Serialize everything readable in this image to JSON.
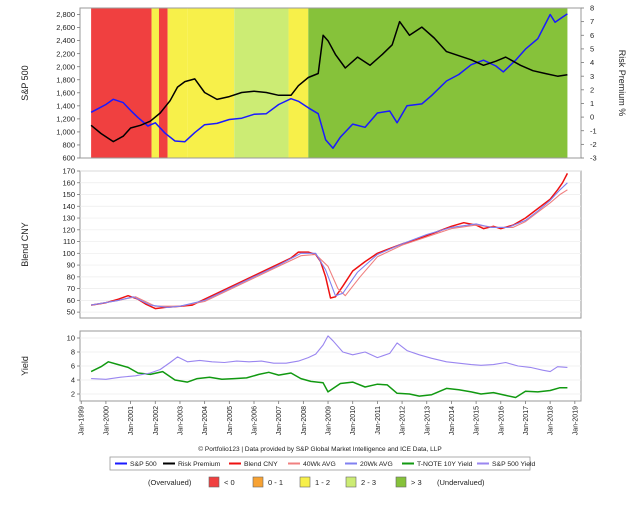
{
  "footer": {
    "credit": "© Portfolio123 | Data provided by S&P Global Market Intelligence and ICE Data, LLP"
  },
  "legend": [
    {
      "label": "S&P 500",
      "color": "#1a1aff"
    },
    {
      "label": "Risk Premium",
      "color": "#000000"
    },
    {
      "label": "Blend CNY",
      "color": "#ee1111"
    },
    {
      "label": "40Wk AVG",
      "color": "#f08080"
    },
    {
      "label": "20Wk AVG",
      "color": "#8080f0"
    },
    {
      "label": "T-NOTE 10Y Yield",
      "color": "#119911"
    },
    {
      "label": "S&P 500 Yield",
      "color": "#9a86f0"
    }
  ],
  "zone_legend": {
    "left_label": "(Overvalued)",
    "right_label": "(Undervalued)",
    "items": [
      {
        "label": "< 0",
        "color": "#f04040"
      },
      {
        "label": "0 - 1",
        "color": "#f7a233"
      },
      {
        "label": "1 - 2",
        "color": "#f7f04a"
      },
      {
        "label": "2 - 3",
        "color": "#ccec74"
      },
      {
        "label": "> 3",
        "color": "#86c23a"
      }
    ]
  },
  "chart_data": [
    {
      "type": "line",
      "ylabel": "S&P 500",
      "y2label": "Risk Premium %",
      "ylim": [
        600,
        2900
      ],
      "y2lim": [
        -3,
        8
      ],
      "yticks": [
        600,
        800,
        1000,
        1200,
        1400,
        1600,
        1800,
        2000,
        2200,
        2400,
        2600,
        2800
      ],
      "ytick_labels": [
        "600",
        "800",
        "1,000",
        "1,200",
        "1,400",
        "1,600",
        "1,800",
        "2,000",
        "2,200",
        "2,400",
        "2,600",
        "2,800"
      ],
      "y2ticks": [
        -3,
        -2,
        -1,
        0,
        1,
        2,
        3,
        4,
        5,
        6,
        7,
        8
      ],
      "background_zones": [
        {
          "from": 1999.4,
          "to": 2001.85,
          "zone": "< 0"
        },
        {
          "from": 2001.85,
          "to": 2002.15,
          "zone": "1 - 2"
        },
        {
          "from": 2002.15,
          "to": 2002.5,
          "zone": "< 0"
        },
        {
          "from": 2002.5,
          "to": 2003.3,
          "zone": "1 - 2"
        },
        {
          "from": 2003.3,
          "to": 2005.2,
          "zone": "1 - 2"
        },
        {
          "from": 2005.2,
          "to": 2007.4,
          "zone": "2 - 3"
        },
        {
          "from": 2007.4,
          "to": 2008.2,
          "zone": "1 - 2"
        },
        {
          "from": 2008.2,
          "to": 2018.7,
          "zone": "> 3"
        }
      ],
      "series": [
        {
          "name": "S&P 500",
          "axis": "left",
          "x": [
            1999.4,
            1999.7,
            2000.0,
            2000.3,
            2000.7,
            2001.0,
            2001.3,
            2001.7,
            2002.0,
            2002.4,
            2002.8,
            2003.2,
            2003.6,
            2004.0,
            2004.5,
            2005.0,
            2005.5,
            2006.0,
            2006.5,
            2007.0,
            2007.5,
            2007.8,
            2008.2,
            2008.6,
            2008.9,
            2009.2,
            2009.5,
            2010.0,
            2010.5,
            2011.0,
            2011.5,
            2011.8,
            2012.2,
            2012.8,
            2013.2,
            2013.8,
            2014.3,
            2014.8,
            2015.3,
            2015.8,
            2016.1,
            2016.6,
            2017.0,
            2017.5,
            2018.0,
            2018.2,
            2018.5,
            2018.7
          ],
          "values": [
            1300,
            1360,
            1420,
            1500,
            1450,
            1330,
            1220,
            1090,
            1140,
            980,
            860,
            850,
            990,
            1110,
            1130,
            1190,
            1210,
            1270,
            1280,
            1420,
            1510,
            1470,
            1370,
            1280,
            880,
            750,
            920,
            1120,
            1070,
            1290,
            1320,
            1140,
            1400,
            1430,
            1560,
            1780,
            1880,
            2030,
            2100,
            2010,
            1920,
            2100,
            2270,
            2430,
            2800,
            2680,
            2760,
            2810
          ]
        },
        {
          "name": "Risk Premium",
          "axis": "right",
          "x": [
            1999.4,
            1999.8,
            2000.3,
            2000.7,
            2001.0,
            2001.4,
            2001.8,
            2002.2,
            2002.6,
            2002.9,
            2003.2,
            2003.6,
            2004.0,
            2004.5,
            2005.0,
            2005.5,
            2006.0,
            2006.5,
            2007.0,
            2007.5,
            2007.8,
            2008.2,
            2008.6,
            2008.8,
            2009.0,
            2009.3,
            2009.7,
            2010.2,
            2010.7,
            2011.2,
            2011.6,
            2011.9,
            2012.3,
            2012.8,
            2013.3,
            2013.8,
            2014.3,
            2014.8,
            2015.3,
            2015.8,
            2016.2,
            2016.8,
            2017.3,
            2017.8,
            2018.3,
            2018.7
          ],
          "values": [
            -0.6,
            -1.2,
            -1.8,
            -1.4,
            -0.8,
            -0.6,
            -0.3,
            0.3,
            1.2,
            2.2,
            2.6,
            2.8,
            1.8,
            1.3,
            1.5,
            1.8,
            1.9,
            1.8,
            1.6,
            1.6,
            2.3,
            2.9,
            3.2,
            6.0,
            5.6,
            4.6,
            3.6,
            4.4,
            3.8,
            4.6,
            5.3,
            7.0,
            6.0,
            6.6,
            5.8,
            4.8,
            4.5,
            4.2,
            3.8,
            4.1,
            4.4,
            3.8,
            3.4,
            3.2,
            3.0,
            3.1
          ]
        }
      ]
    },
    {
      "type": "line",
      "ylabel": "Blend CNY",
      "ylim": [
        45,
        170
      ],
      "yticks": [
        50,
        60,
        70,
        80,
        90,
        100,
        110,
        120,
        130,
        140,
        150,
        160,
        170
      ],
      "series": [
        {
          "name": "Blend CNY",
          "x": [
            1999.4,
            2000.0,
            2000.5,
            2000.9,
            2001.3,
            2001.6,
            2002.0,
            2002.4,
            2003.0,
            2003.5,
            2004.0,
            2004.5,
            2005.0,
            2005.5,
            2006.0,
            2006.5,
            2007.0,
            2007.5,
            2007.8,
            2008.2,
            2008.5,
            2008.7,
            2008.9,
            2009.1,
            2009.3,
            2009.6,
            2010.0,
            2010.5,
            2011.0,
            2011.5,
            2012.0,
            2012.5,
            2013.0,
            2013.5,
            2014.0,
            2014.5,
            2015.0,
            2015.3,
            2015.7,
            2016.0,
            2016.5,
            2017.0,
            2017.5,
            2018.0,
            2018.3,
            2018.5,
            2018.7
          ],
          "values": [
            56,
            58,
            61,
            64,
            61,
            57,
            53,
            54,
            55,
            56,
            61,
            66,
            71,
            76,
            81,
            86,
            91,
            96,
            101,
            101,
            99,
            93,
            80,
            62,
            63,
            72,
            85,
            93,
            100,
            104,
            108,
            111,
            115,
            119,
            123,
            126,
            124,
            121,
            123,
            121,
            124,
            130,
            138,
            146,
            154,
            160,
            168
          ]
        },
        {
          "name": "40Wk AVG",
          "x": [
            1999.4,
            2000.5,
            2001.2,
            2002.0,
            2003.0,
            2004.0,
            2005.0,
            2006.0,
            2007.0,
            2007.9,
            2008.5,
            2009.0,
            2009.4,
            2009.7,
            2010.3,
            2011.0,
            2012.0,
            2013.0,
            2014.0,
            2015.0,
            2015.8,
            2016.5,
            2017.0,
            2017.5,
            2018.0,
            2018.4,
            2018.7
          ],
          "values": [
            56,
            60,
            63,
            55,
            55,
            59,
            69,
            79,
            89,
            98,
            99,
            89,
            70,
            64,
            80,
            97,
            107,
            114,
            121,
            124,
            122,
            122,
            127,
            135,
            143,
            150,
            154
          ]
        },
        {
          "name": "20Wk AVG",
          "x": [
            1999.4,
            2000.5,
            2001.1,
            2001.8,
            2002.5,
            2003.0,
            2004.0,
            2005.0,
            2006.0,
            2007.0,
            2007.9,
            2008.5,
            2008.9,
            2009.3,
            2009.6,
            2010.2,
            2011.0,
            2012.0,
            2013.0,
            2014.0,
            2015.0,
            2015.6,
            2016.3,
            2017.0,
            2017.5,
            2018.0,
            2018.4,
            2018.7
          ],
          "values": [
            56,
            60,
            63,
            56,
            54,
            55,
            60,
            70,
            80,
            90,
            100,
            100,
            86,
            64,
            66,
            84,
            99,
            108,
            116,
            122,
            125,
            122,
            122,
            128,
            136,
            145,
            154,
            160
          ]
        }
      ]
    },
    {
      "type": "line",
      "ylabel": "Yield",
      "ylim": [
        1,
        11
      ],
      "yticks": [
        2,
        4,
        6,
        8,
        10
      ],
      "x_ticks": [
        "Jan-1999",
        "Jan-2000",
        "Jan-2001",
        "Jan-2002",
        "Jan-2003",
        "Jan-2004",
        "Jan-2005",
        "Jan-2006",
        "Jan-2007",
        "Jan-2008",
        "Jan-2009",
        "Jan-2010",
        "Jan-2011",
        "Jan-2012",
        "Jan-2013",
        "Jan-2014",
        "Jan-2015",
        "Jan-2016",
        "Jan-2017",
        "Jan-2018",
        "Jan-2019"
      ],
      "series": [
        {
          "name": "T-NOTE 10Y Yield",
          "x": [
            1999.4,
            1999.8,
            2000.1,
            2000.5,
            2000.9,
            2001.3,
            2001.8,
            2002.3,
            2002.8,
            2003.3,
            2003.7,
            2004.2,
            2004.7,
            2005.2,
            2005.7,
            2006.2,
            2006.6,
            2007.0,
            2007.5,
            2007.9,
            2008.3,
            2008.8,
            2009.0,
            2009.5,
            2010.0,
            2010.5,
            2011.0,
            2011.4,
            2011.8,
            2012.3,
            2012.7,
            2013.2,
            2013.8,
            2014.3,
            2014.8,
            2015.2,
            2015.7,
            2016.2,
            2016.6,
            2017.0,
            2017.5,
            2018.0,
            2018.4,
            2018.7
          ],
          "values": [
            5.2,
            5.9,
            6.6,
            6.2,
            5.8,
            5.0,
            4.8,
            5.2,
            4.0,
            3.7,
            4.2,
            4.4,
            4.1,
            4.2,
            4.3,
            4.8,
            5.1,
            4.7,
            5.0,
            4.2,
            3.8,
            3.6,
            2.3,
            3.5,
            3.7,
            3.0,
            3.4,
            3.3,
            2.1,
            2.0,
            1.7,
            1.9,
            2.8,
            2.6,
            2.3,
            2.0,
            2.2,
            1.8,
            1.5,
            2.4,
            2.3,
            2.5,
            2.9,
            2.9
          ]
        },
        {
          "name": "S&P 500 Yield",
          "x": [
            1999.4,
            2000.0,
            2000.6,
            2001.2,
            2001.8,
            2002.2,
            2002.6,
            2002.9,
            2003.3,
            2003.8,
            2004.3,
            2004.8,
            2005.3,
            2005.8,
            2006.3,
            2006.8,
            2007.3,
            2007.8,
            2008.2,
            2008.5,
            2008.8,
            2009.0,
            2009.2,
            2009.6,
            2010.0,
            2010.5,
            2011.0,
            2011.5,
            2011.8,
            2012.2,
            2012.7,
            2013.2,
            2013.8,
            2014.3,
            2014.8,
            2015.2,
            2015.7,
            2016.2,
            2016.7,
            2017.2,
            2017.7,
            2018.0,
            2018.3,
            2018.7
          ],
          "values": [
            4.2,
            4.1,
            4.4,
            4.6,
            5.0,
            5.5,
            6.5,
            7.3,
            6.6,
            6.8,
            6.6,
            6.5,
            6.7,
            6.6,
            6.7,
            6.4,
            6.4,
            6.7,
            7.2,
            7.7,
            9.0,
            10.3,
            9.6,
            8.0,
            7.6,
            8.0,
            7.2,
            7.8,
            9.3,
            8.2,
            7.6,
            7.1,
            6.6,
            6.4,
            6.2,
            6.1,
            6.2,
            6.5,
            6.0,
            5.8,
            5.4,
            5.2,
            5.9,
            5.8
          ]
        }
      ]
    }
  ]
}
